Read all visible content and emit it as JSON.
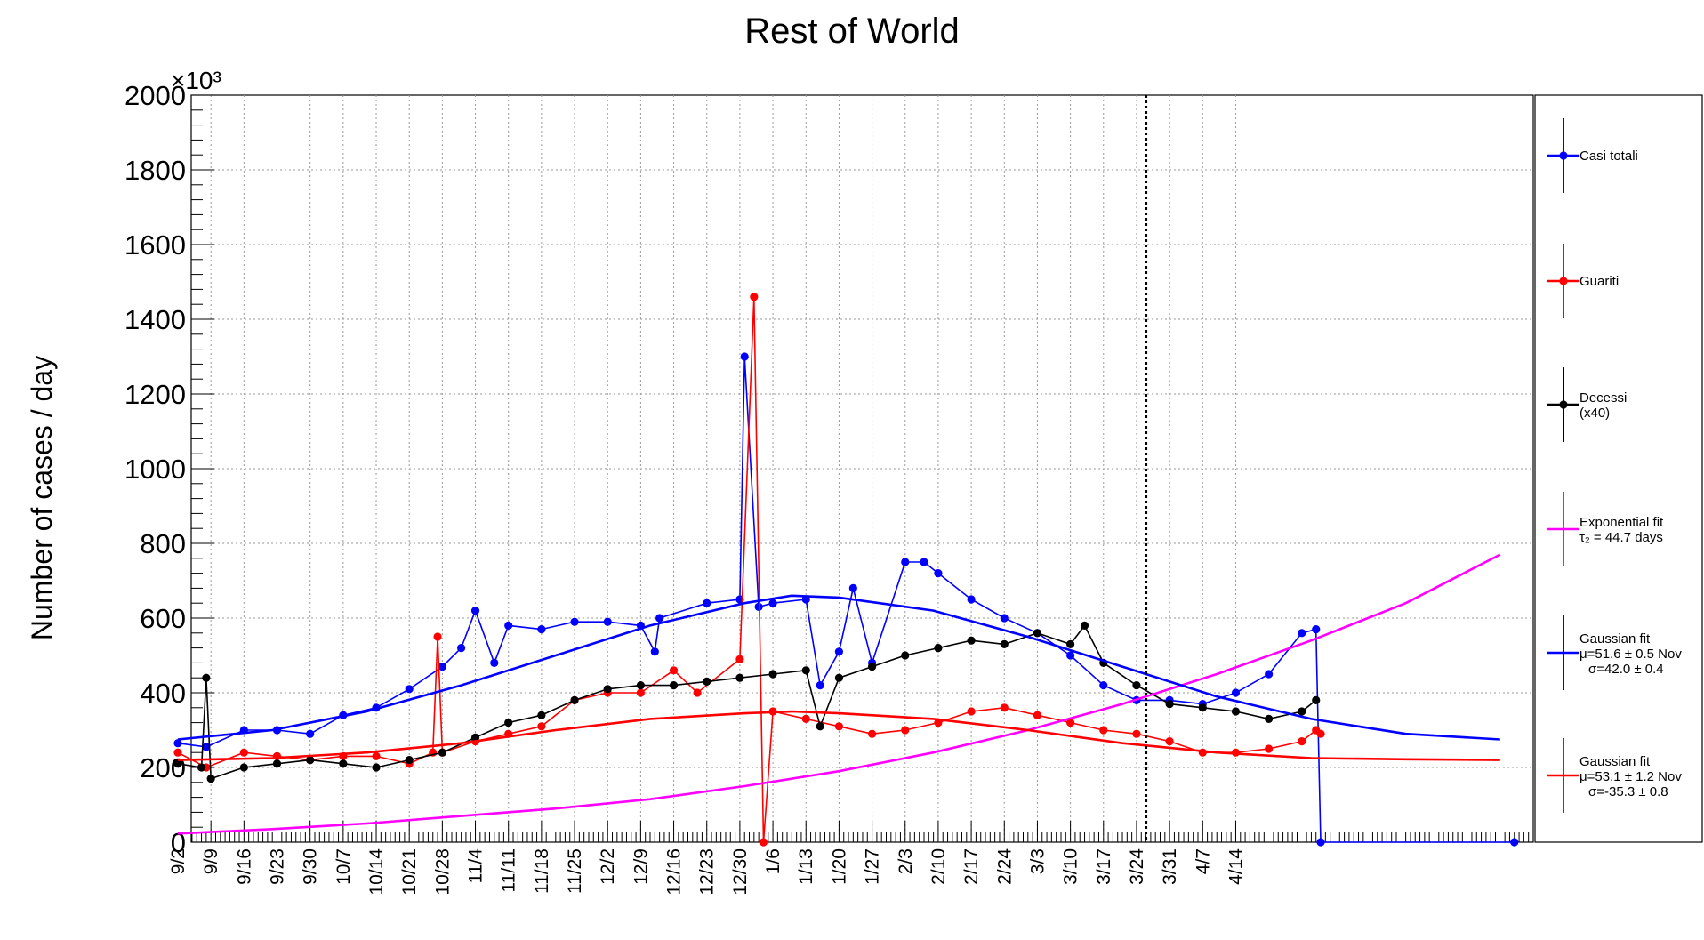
{
  "chart_data": {
    "type": "line",
    "title": "Rest of World",
    "ylabel": "Number of cases / day",
    "y_multiplier": "×10³",
    "ylim": [
      0,
      2000000
    ],
    "y_ticks": [
      0,
      200000,
      400000,
      600000,
      800000,
      1000000,
      1200000,
      1400000,
      1600000,
      1800000,
      2000000
    ],
    "y_tick_labels": [
      "0",
      "200",
      "400",
      "600",
      "800",
      "1000",
      "1200",
      "1400",
      "1600",
      "1800",
      "2000"
    ],
    "x_tick_labels": [
      "9/2",
      "9/9",
      "9/16",
      "9/23",
      "9/30",
      "10/7",
      "10/14",
      "10/21",
      "10/28",
      "11/4",
      "11/11",
      "11/18",
      "11/25",
      "12/2",
      "12/9",
      "12/16",
      "12/23",
      "12/30",
      "1/6",
      "1/13",
      "1/20",
      "1/27",
      "2/3",
      "2/10",
      "2/17",
      "2/24",
      "3/3",
      "3/10",
      "3/17",
      "3/24",
      "3/31",
      "4/7",
      "4/14"
    ],
    "grid": true,
    "vertical_marker_label": "3/26",
    "legend_position": "right",
    "series": [
      {
        "name": "Casi totali",
        "color": "#0000ff",
        "style": "points-line",
        "points": [
          [
            0,
            265000
          ],
          [
            6,
            255000
          ],
          [
            14,
            300000
          ],
          [
            21,
            300000
          ],
          [
            28,
            290000
          ],
          [
            35,
            340000
          ],
          [
            42,
            360000
          ],
          [
            49,
            410000
          ],
          [
            56,
            470000
          ],
          [
            60,
            520000
          ],
          [
            63,
            620000
          ],
          [
            67,
            480000
          ],
          [
            70,
            580000
          ],
          [
            77,
            570000
          ],
          [
            84,
            590000
          ],
          [
            91,
            590000
          ],
          [
            98,
            580000
          ],
          [
            101,
            510000
          ],
          [
            102,
            600000
          ],
          [
            112,
            640000
          ],
          [
            119,
            650000
          ],
          [
            120,
            1300000
          ],
          [
            123,
            630000
          ],
          [
            126,
            640000
          ],
          [
            133,
            650000
          ],
          [
            136,
            420000
          ],
          [
            140,
            510000
          ],
          [
            143,
            680000
          ],
          [
            147,
            480000
          ],
          [
            154,
            750000
          ],
          [
            158,
            750000
          ],
          [
            161,
            720000
          ],
          [
            168,
            650000
          ],
          [
            175,
            600000
          ],
          [
            182,
            560000
          ],
          [
            189,
            500000
          ],
          [
            196,
            420000
          ],
          [
            203,
            380000
          ],
          [
            210,
            380000
          ],
          [
            217,
            370000
          ],
          [
            224,
            400000
          ],
          [
            231,
            450000
          ],
          [
            238,
            560000
          ],
          [
            241,
            570000
          ],
          [
            242,
            0
          ],
          [
            283,
            0
          ]
        ]
      },
      {
        "name": "Guariti",
        "color": "#ff0000",
        "style": "points-line",
        "points": [
          [
            0,
            240000
          ],
          [
            6,
            200000
          ],
          [
            14,
            240000
          ],
          [
            21,
            230000
          ],
          [
            28,
            220000
          ],
          [
            35,
            230000
          ],
          [
            42,
            230000
          ],
          [
            49,
            210000
          ],
          [
            54,
            240000
          ],
          [
            55,
            550000
          ],
          [
            56,
            240000
          ],
          [
            63,
            270000
          ],
          [
            70,
            290000
          ],
          [
            77,
            310000
          ],
          [
            84,
            380000
          ],
          [
            91,
            400000
          ],
          [
            98,
            400000
          ],
          [
            105,
            460000
          ],
          [
            110,
            400000
          ],
          [
            119,
            490000
          ],
          [
            122,
            1460000
          ],
          [
            124,
            0
          ],
          [
            126,
            350000
          ],
          [
            133,
            330000
          ],
          [
            140,
            310000
          ],
          [
            147,
            290000
          ],
          [
            154,
            300000
          ],
          [
            161,
            320000
          ],
          [
            168,
            350000
          ],
          [
            175,
            360000
          ],
          [
            182,
            340000
          ],
          [
            189,
            320000
          ],
          [
            196,
            300000
          ],
          [
            203,
            290000
          ],
          [
            210,
            270000
          ],
          [
            217,
            240000
          ],
          [
            224,
            240000
          ],
          [
            231,
            250000
          ],
          [
            238,
            270000
          ],
          [
            241,
            300000
          ],
          [
            242,
            290000
          ]
        ]
      },
      {
        "name": "Decessi",
        "name_line2": "(x40)",
        "color": "#000000",
        "style": "points-line",
        "points": [
          [
            0,
            210000
          ],
          [
            5,
            200000
          ],
          [
            6,
            440000
          ],
          [
            7,
            170000
          ],
          [
            14,
            200000
          ],
          [
            21,
            210000
          ],
          [
            28,
            220000
          ],
          [
            35,
            210000
          ],
          [
            42,
            200000
          ],
          [
            49,
            220000
          ],
          [
            56,
            240000
          ],
          [
            63,
            280000
          ],
          [
            70,
            320000
          ],
          [
            77,
            340000
          ],
          [
            84,
            380000
          ],
          [
            91,
            410000
          ],
          [
            98,
            420000
          ],
          [
            105,
            420000
          ],
          [
            112,
            430000
          ],
          [
            119,
            440000
          ],
          [
            126,
            450000
          ],
          [
            133,
            460000
          ],
          [
            136,
            310000
          ],
          [
            140,
            440000
          ],
          [
            147,
            470000
          ],
          [
            154,
            500000
          ],
          [
            161,
            520000
          ],
          [
            168,
            540000
          ],
          [
            175,
            530000
          ],
          [
            182,
            560000
          ],
          [
            189,
            530000
          ],
          [
            192,
            580000
          ],
          [
            196,
            480000
          ],
          [
            203,
            420000
          ],
          [
            210,
            370000
          ],
          [
            217,
            360000
          ],
          [
            224,
            350000
          ],
          [
            231,
            330000
          ],
          [
            238,
            350000
          ],
          [
            241,
            380000
          ]
        ]
      },
      {
        "name": "Exponential fit",
        "name_line2": "τ₂ = 44.7 days",
        "color": "#ff00ff",
        "style": "line",
        "points": [
          [
            0,
            23000
          ],
          [
            20,
            35000
          ],
          [
            40,
            50000
          ],
          [
            60,
            70000
          ],
          [
            80,
            90000
          ],
          [
            100,
            115000
          ],
          [
            120,
            150000
          ],
          [
            140,
            190000
          ],
          [
            160,
            240000
          ],
          [
            180,
            300000
          ],
          [
            200,
            370000
          ],
          [
            220,
            450000
          ],
          [
            240,
            540000
          ],
          [
            260,
            640000
          ],
          [
            280,
            770000
          ]
        ]
      },
      {
        "name": "Gaussian fit",
        "name_line2": "μ=51.6 ± 0.5 Nov",
        "name_line3": "σ=42.0 ± 0.4",
        "color": "#0000ff",
        "style": "line",
        "points": [
          [
            0,
            275000
          ],
          [
            20,
            300000
          ],
          [
            40,
            350000
          ],
          [
            60,
            420000
          ],
          [
            80,
            500000
          ],
          [
            100,
            580000
          ],
          [
            120,
            640000
          ],
          [
            130,
            660000
          ],
          [
            140,
            655000
          ],
          [
            160,
            620000
          ],
          [
            180,
            550000
          ],
          [
            200,
            470000
          ],
          [
            220,
            390000
          ],
          [
            240,
            330000
          ],
          [
            260,
            290000
          ],
          [
            280,
            275000
          ]
        ]
      },
      {
        "name": "Gaussian fit",
        "name_line2": "μ=53.1 ± 1.2 Nov",
        "name_line3": "σ=-35.3 ± 0.8",
        "color": "#ff0000",
        "style": "line",
        "points": [
          [
            0,
            220000
          ],
          [
            20,
            225000
          ],
          [
            40,
            240000
          ],
          [
            60,
            265000
          ],
          [
            80,
            300000
          ],
          [
            100,
            330000
          ],
          [
            120,
            345000
          ],
          [
            130,
            350000
          ],
          [
            140,
            345000
          ],
          [
            160,
            330000
          ],
          [
            180,
            300000
          ],
          [
            200,
            265000
          ],
          [
            220,
            240000
          ],
          [
            240,
            225000
          ],
          [
            260,
            222000
          ],
          [
            280,
            220000
          ]
        ]
      }
    ]
  }
}
